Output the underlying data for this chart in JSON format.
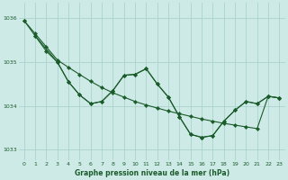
{
  "bg_color": "#ceeae7",
  "grid_color": "#aad4cc",
  "line_color": "#1a5c2a",
  "title": "Graphe pression niveau de la mer (hPa)",
  "xlim": [
    -0.5,
    23.5
  ],
  "ylim": [
    1032.75,
    1036.35
  ],
  "yticks": [
    1033,
    1034,
    1035,
    1036
  ],
  "xticks": [
    0,
    1,
    2,
    3,
    4,
    5,
    6,
    7,
    8,
    9,
    10,
    11,
    12,
    13,
    14,
    15,
    16,
    17,
    18,
    19,
    20,
    21,
    22,
    23
  ],
  "series1_x": [
    0,
    1,
    2,
    3,
    4,
    5,
    6,
    7,
    8,
    9,
    10,
    11,
    12,
    13,
    14,
    15,
    16,
    17,
    18,
    19,
    20,
    21,
    22,
    23
  ],
  "series1_y": [
    1035.95,
    1035.65,
    1035.35,
    1035.05,
    1034.88,
    1034.72,
    1034.56,
    1034.42,
    1034.3,
    1034.2,
    1034.1,
    1034.02,
    1033.95,
    1033.88,
    1033.82,
    1033.76,
    1033.7,
    1033.65,
    1033.6,
    1033.56,
    1033.52,
    1033.48,
    1034.22,
    1034.18
  ],
  "series2_x": [
    0,
    1,
    2,
    3,
    4,
    5,
    6,
    7,
    8,
    9,
    10,
    11,
    12,
    13,
    14,
    15,
    16,
    17,
    18,
    19,
    20,
    21,
    22,
    23
  ],
  "series2_y": [
    1035.95,
    1035.6,
    1035.25,
    1035.0,
    1034.55,
    1034.25,
    1034.05,
    1034.1,
    1034.35,
    1034.7,
    1034.72,
    1034.85,
    1034.5,
    1034.2,
    1033.75,
    1033.35,
    1033.28,
    1033.32,
    1033.65,
    1033.9,
    1034.1,
    1034.05,
    1034.22,
    1034.18
  ],
  "series3_x": [
    1,
    3,
    4,
    5,
    6,
    7,
    8,
    9,
    10,
    11,
    12,
    13,
    14,
    15,
    16,
    17,
    18,
    19,
    20,
    21,
    22,
    23
  ],
  "series3_y": [
    1035.6,
    1035.0,
    1034.55,
    1034.25,
    1034.05,
    1034.1,
    1034.35,
    1034.7,
    1034.72,
    1034.85,
    1034.5,
    1034.2,
    1033.75,
    1033.35,
    1033.28,
    1033.32,
    1033.65,
    1033.9,
    1034.1,
    1034.05,
    1034.22,
    1034.18
  ]
}
